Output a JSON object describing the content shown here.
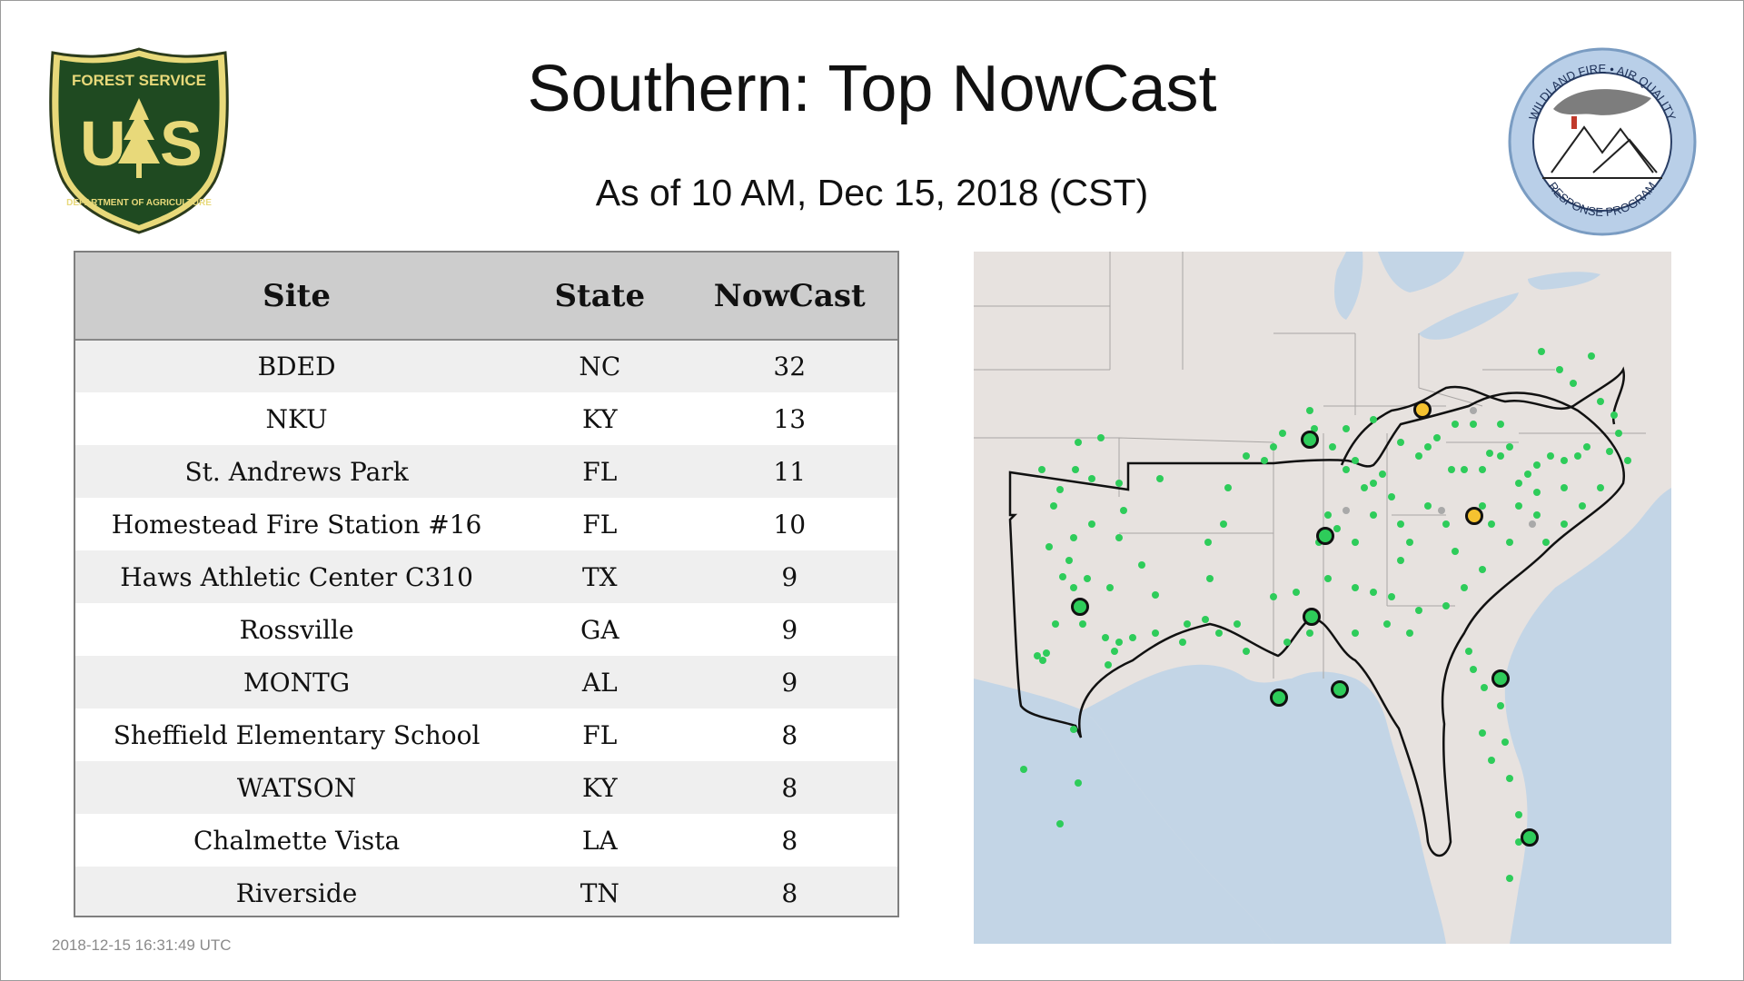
{
  "header": {
    "title": "Southern: Top NowCast",
    "subtitle": "As of 10 AM, Dec 15, 2018 (CST)"
  },
  "logos": {
    "usfs": {
      "top_text": "FOREST SERVICE",
      "letters": "U S",
      "bottom_text": "DEPARTMENT OF AGRICULTURE"
    },
    "wfaq": {
      "top_text": "WILDLAND FIRE • AIR QUALITY",
      "bottom_text": "RESPONSE PROGRAM"
    }
  },
  "table": {
    "headers": {
      "site": "Site",
      "state": "State",
      "nowcast": "NowCast"
    },
    "rows": [
      {
        "site": "BDED",
        "state": "NC",
        "nowcast": "32"
      },
      {
        "site": "NKU",
        "state": "KY",
        "nowcast": "13"
      },
      {
        "site": "St. Andrews Park",
        "state": "FL",
        "nowcast": "11"
      },
      {
        "site": "Homestead Fire Station #16",
        "state": "FL",
        "nowcast": "10"
      },
      {
        "site": "Haws Athletic Center C310",
        "state": "TX",
        "nowcast": "9"
      },
      {
        "site": "Rossville",
        "state": "GA",
        "nowcast": "9"
      },
      {
        "site": "MONTG",
        "state": "AL",
        "nowcast": "9"
      },
      {
        "site": "Sheffield Elementary School",
        "state": "FL",
        "nowcast": "8"
      },
      {
        "site": "WATSON",
        "state": "KY",
        "nowcast": "8"
      },
      {
        "site": "Chalmette Vista",
        "state": "LA",
        "nowcast": "8"
      },
      {
        "site": "Riverside",
        "state": "TN",
        "nowcast": "8"
      }
    ]
  },
  "footer": {
    "timestamp": "2018-12-15 16:31:49 UTC"
  },
  "map": {
    "colors": {
      "land": "#e7e2df",
      "water": "#c3d5e6",
      "green_marker": "#2ecc5a",
      "yellow_marker": "#f5c230",
      "border": "#111111"
    },
    "icons": {
      "usfs_logo": "us-forest-service-shield",
      "wfaq_logo": "wildland-fire-air-quality-seal"
    }
  }
}
